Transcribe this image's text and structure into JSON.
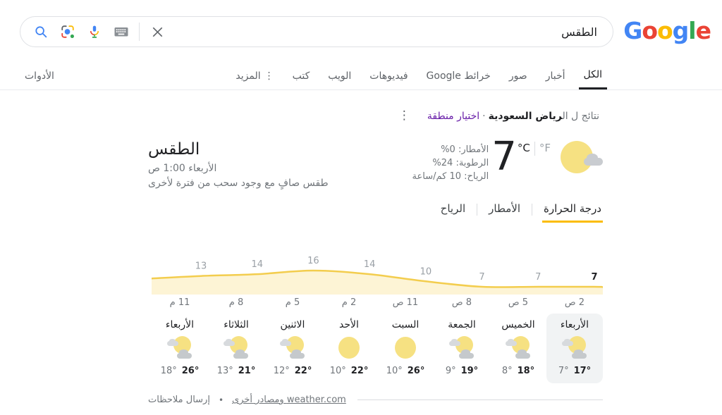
{
  "header": {
    "logo": {
      "letters": [
        {
          "ch": "G",
          "color": "#4285F4"
        },
        {
          "ch": "o",
          "color": "#EA4335"
        },
        {
          "ch": "o",
          "color": "#FBBC05"
        },
        {
          "ch": "g",
          "color": "#4285F4"
        },
        {
          "ch": "l",
          "color": "#34A853"
        },
        {
          "ch": "e",
          "color": "#EA4335"
        }
      ]
    },
    "search": {
      "query": "الطقس",
      "icons": [
        "search-icon",
        "lens-icon",
        "mic-icon",
        "keyboard-icon",
        "close-icon"
      ]
    }
  },
  "tabs": {
    "items": [
      {
        "name": "all",
        "label": "الكل",
        "active": true
      },
      {
        "name": "news",
        "label": "أخبار",
        "active": false
      },
      {
        "name": "images",
        "label": "صور",
        "active": false
      },
      {
        "name": "maps",
        "label": "خرائط Google",
        "active": false
      },
      {
        "name": "videos",
        "label": "فيديوهات",
        "active": false
      },
      {
        "name": "web",
        "label": "الويب",
        "active": false
      },
      {
        "name": "books",
        "label": "كتب",
        "active": false
      },
      {
        "name": "more",
        "label": "المزيد",
        "active": false,
        "icon_glyph": "⋮"
      }
    ],
    "tools_label": "الأدوات"
  },
  "results_info": {
    "prefix": "نتائج ل ال",
    "location": "رياض السعودية",
    "separator": "·",
    "choose_area_label": "اختيار منطقة",
    "more_icon_glyph": "⋮"
  },
  "weather": {
    "title": "الطقس",
    "datetime": "الأربعاء 1:00 ص",
    "condition": "طقس صافٍ مع وجود سحب من فترة لأخرى",
    "current": {
      "temp": "7",
      "unit_c": "°C",
      "unit_f": "°F",
      "precipitation": "الأمطار: 0%",
      "humidity": "الرطوبة: 24%",
      "wind": "الرياح: 10 كم/ساعة",
      "icon": "sun-with-cloud"
    },
    "panel_tabs": [
      {
        "name": "temperature",
        "label": "درجة الحرارة",
        "active": true
      },
      {
        "name": "precipitation",
        "label": "الأمطار",
        "active": false
      },
      {
        "name": "wind",
        "label": "الرياح",
        "active": false
      }
    ],
    "days": [
      {
        "name": "الأربعاء",
        "low": "7°",
        "high": "17°",
        "icon": "partly-cloudy",
        "today": true
      },
      {
        "name": "الخميس",
        "low": "8°",
        "high": "18°",
        "icon": "partly-cloudy",
        "today": false
      },
      {
        "name": "الجمعة",
        "low": "9°",
        "high": "19°",
        "icon": "partly-cloudy",
        "today": false
      },
      {
        "name": "السبت",
        "low": "10°",
        "high": "26°",
        "icon": "sunny",
        "today": false
      },
      {
        "name": "الأحد",
        "low": "10°",
        "high": "22°",
        "icon": "sunny",
        "today": false
      },
      {
        "name": "الاثنين",
        "low": "12°",
        "high": "22°",
        "icon": "partly-cloudy",
        "today": false
      },
      {
        "name": "الثلاثاء",
        "low": "13°",
        "high": "21°",
        "icon": "partly-cloudy",
        "today": false
      },
      {
        "name": "الأربعاء",
        "low": "18°",
        "high": "26°",
        "icon": "partly-cloudy",
        "today": false
      }
    ],
    "footer": {
      "source_label": "weather.com ومصادر أخرى",
      "bullet": "•",
      "feedback_label": "إرسال ملاحظات"
    }
  },
  "chart_data": {
    "type": "area",
    "title": "درجة الحرارة",
    "x": [
      "2 ص",
      "5 ص",
      "8 ص",
      "11 ص",
      "2 م",
      "5 م",
      "8 م",
      "11 م"
    ],
    "values": [
      7,
      7,
      7,
      10,
      14,
      16,
      14,
      13
    ],
    "unit": "°C",
    "direction": "rtl",
    "current_index": 0,
    "ylim": [
      7,
      16
    ],
    "grid": false,
    "line_color": "#f3cd4e",
    "fill_color": "#fdf4d5",
    "label_color": "#9aa0a6",
    "current_label_color": "#202124"
  }
}
